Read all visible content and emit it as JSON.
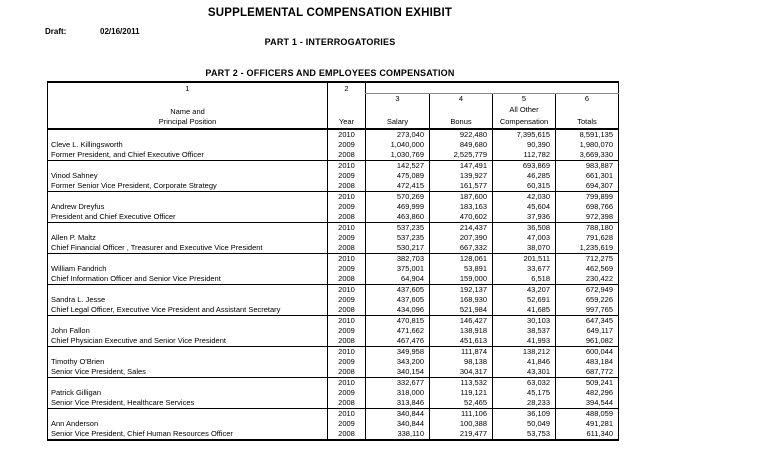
{
  "document": {
    "title": "SUPPLEMENTAL COMPENSATION EXHIBIT",
    "draft_label": "Draft:",
    "draft_date": "02/16/2011",
    "part1_heading": "PART 1 - INTERROGATORIES",
    "part2_heading": "PART 2 - OFFICERS AND EMPLOYEES COMPENSATION"
  },
  "table": {
    "header": {
      "col1_num": "1",
      "col2_num": "2",
      "col3_num": "3",
      "col4_num": "4",
      "col5_num": "5",
      "col6_num": "6",
      "name_line1": "Name and",
      "name_line2": "Principal Position",
      "year_label": "Year",
      "salary_label": "Salary",
      "bonus_label": "Bonus",
      "other_line1": "All Other",
      "other_line2": "Compensation",
      "totals_label": "Totals"
    },
    "officers": [
      {
        "name": "Cleve L. Killingsworth",
        "position": "Former President, and Chief Executive Officer",
        "rows": [
          [
            "2010",
            "273,040",
            "922,480",
            "7,395,615",
            "8,591,135"
          ],
          [
            "2009",
            "1,040,000",
            "849,680",
            "90,390",
            "1,980,070"
          ],
          [
            "2008",
            "1,030,769",
            "2,525,779",
            "112,782",
            "3,669,330"
          ]
        ]
      },
      {
        "name": "Vinod Sahney",
        "position": "Former Senior Vice President, Corporate Strategy",
        "rows": [
          [
            "2010",
            "142,527",
            "147,491",
            "693,869",
            "983,887"
          ],
          [
            "2009",
            "475,089",
            "139,927",
            "46,285",
            "661,301"
          ],
          [
            "2008",
            "472,415",
            "161,577",
            "60,315",
            "694,307"
          ]
        ]
      },
      {
        "name": "Andrew Dreyfus",
        "position": "President and Chief Executive Officer",
        "rows": [
          [
            "2010",
            "570,269",
            "187,600",
            "42,030",
            "799,899"
          ],
          [
            "2009",
            "469,999",
            "183,163",
            "45,604",
            "698,766"
          ],
          [
            "2008",
            "463,860",
            "470,602",
            "37,936",
            "972,398"
          ]
        ]
      },
      {
        "name": "Allen P. Maltz",
        "position": "Chief Financial Officer , Treasurer and Executive Vice President",
        "rows": [
          [
            "2010",
            "537,235",
            "214,437",
            "36,508",
            "788,180"
          ],
          [
            "2009",
            "537,235",
            "207,390",
            "47,003",
            "791,628"
          ],
          [
            "2008",
            "530,217",
            "667,332",
            "38,070",
            "1,235,619"
          ]
        ]
      },
      {
        "name": "William Fandrich",
        "position": "Chief Information Officer and Senior Vice President",
        "rows": [
          [
            "2010",
            "382,703",
            "128,061",
            "201,511",
            "712,275"
          ],
          [
            "2009",
            "375,001",
            "53,891",
            "33,677",
            "462,569"
          ],
          [
            "2008",
            "64,904",
            "159,000",
            "6,518",
            "230,422"
          ]
        ]
      },
      {
        "name": "Sandra L. Jesse",
        "position": "Chief Legal Officer, Executive Vice President and Assistant Secretary",
        "rows": [
          [
            "2010",
            "437,605",
            "192,137",
            "43,207",
            "672,949"
          ],
          [
            "2009",
            "437,605",
            "168,930",
            "52,691",
            "659,226"
          ],
          [
            "2008",
            "434,096",
            "521,984",
            "41,685",
            "997,765"
          ]
        ]
      },
      {
        "name": "John Fallon",
        "position": "Chief Physician Executive and Senior Vice President",
        "rows": [
          [
            "2010",
            "470,815",
            "146,427",
            "30,103",
            "647,345"
          ],
          [
            "2009",
            "471,662",
            "138,918",
            "38,537",
            "649,117"
          ],
          [
            "2008",
            "467,476",
            "451,613",
            "41,993",
            "961,082"
          ]
        ]
      },
      {
        "name": "Timothy O'Brien",
        "position": "Senior Vice President, Sales",
        "rows": [
          [
            "2010",
            "349,958",
            "111,874",
            "138,212",
            "600,044"
          ],
          [
            "2009",
            "343,200",
            "98,138",
            "41,846",
            "483,184"
          ],
          [
            "2008",
            "340,154",
            "304,317",
            "43,301",
            "687,772"
          ]
        ]
      },
      {
        "name": "Patrick Gilligan",
        "position": "Senior Vice President, Healthcare Services",
        "rows": [
          [
            "2010",
            "332,677",
            "113,532",
            "63,032",
            "509,241"
          ],
          [
            "2009",
            "318,000",
            "119,121",
            "45,175",
            "482,296"
          ],
          [
            "2008",
            "313,846",
            "52,465",
            "28,233",
            "394,544"
          ]
        ]
      },
      {
        "name": "Ann Anderson",
        "position": "Senior Vice President, Chief Human Resources Officer",
        "rows": [
          [
            "2010",
            "340,844",
            "111,106",
            "36,109",
            "488,059"
          ],
          [
            "2009",
            "340,844",
            "100,388",
            "50,049",
            "491,281"
          ],
          [
            "2008",
            "338,110",
            "219,477",
            "53,753",
            "611,340"
          ]
        ]
      }
    ]
  }
}
